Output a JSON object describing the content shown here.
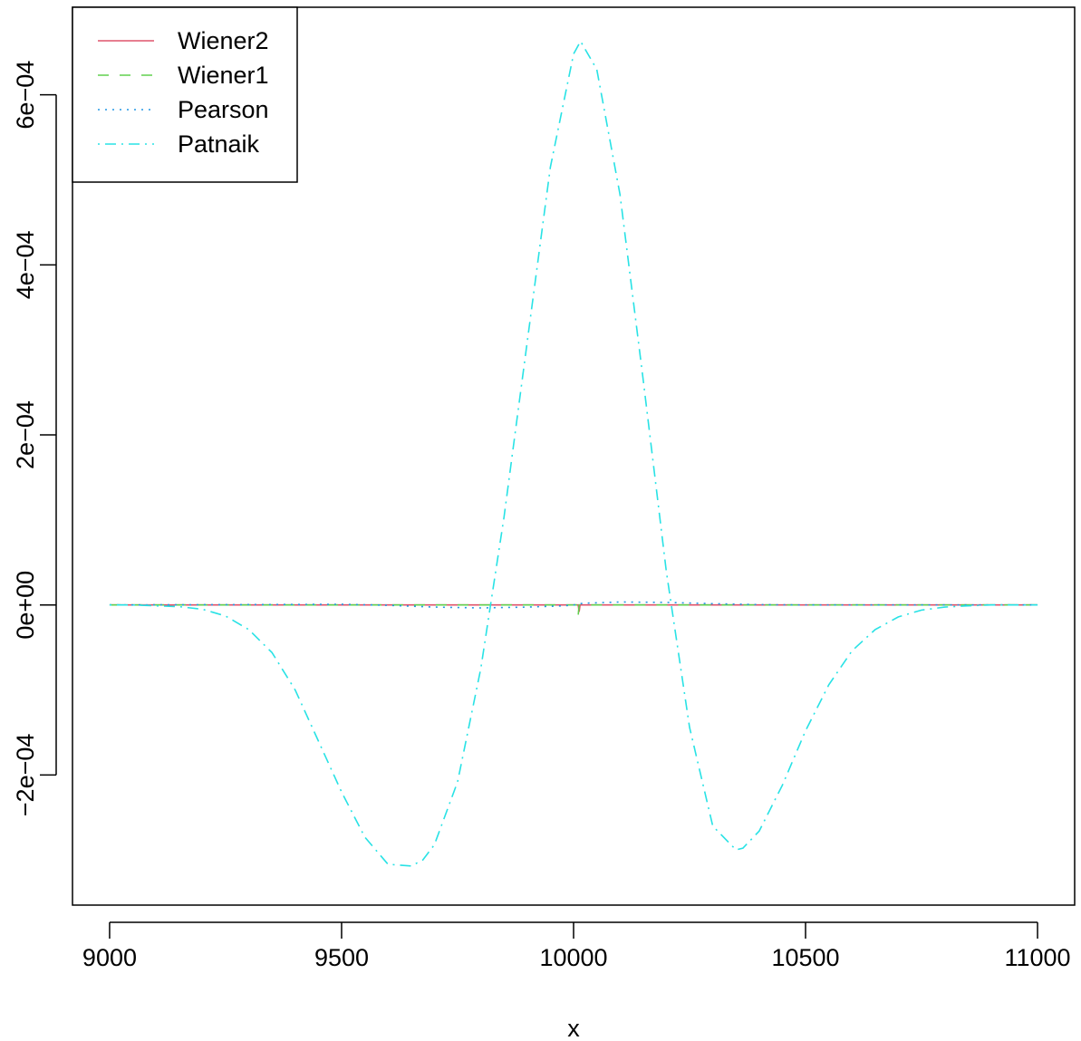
{
  "chart_data": {
    "type": "line",
    "title": "",
    "xlabel": "x",
    "ylabel": "",
    "xlim": [
      8920,
      11080
    ],
    "ylim": [
      -0.000353,
      0.000703
    ],
    "x_ticks": [
      9000,
      9500,
      10000,
      10500,
      11000
    ],
    "x_tick_labels": [
      "9000",
      "9500",
      "10000",
      "10500",
      "11000"
    ],
    "y_ticks": [
      -0.0002,
      0,
      0.0002,
      0.0004,
      0.0006
    ],
    "y_tick_labels": [
      "−2e−04",
      "0e+00",
      "2e−04",
      "4e−04",
      "6e−04"
    ],
    "legend_position": "top-left",
    "grid": false,
    "series": [
      {
        "name": "Wiener2",
        "color": "#DF536B",
        "dash": "solid",
        "x": [
          9000,
          10000,
          10010,
          10012,
          10014,
          11000
        ],
        "y": [
          0,
          0,
          0,
          -8e-06,
          0,
          0
        ]
      },
      {
        "name": "Wiener1",
        "color": "#61D04F",
        "dash": "dashed",
        "x": [
          9000,
          10000,
          10008,
          10010,
          10012,
          11000
        ],
        "y": [
          0,
          0,
          0,
          -1.2e-05,
          0,
          0
        ]
      },
      {
        "name": "Pearson",
        "color": "#2297E6",
        "dash": "dotted",
        "x": [
          9000,
          9300,
          9500,
          9600,
          9700,
          9800,
          9900,
          9980,
          10000,
          10020,
          10100,
          10200,
          10300,
          10400,
          10500,
          10700,
          11000
        ],
        "y": [
          0,
          4e-07,
          8e-07,
          -4e-07,
          -2.5e-06,
          -3.5e-06,
          -2.5e-06,
          -1e-06,
          0,
          2e-06,
          3.5e-06,
          3e-06,
          1.5e-06,
          4e-07,
          0,
          0,
          0
        ]
      },
      {
        "name": "Patnaik",
        "color": "#28E2E5",
        "dash": "dotdash",
        "x": [
          9000,
          9050,
          9100,
          9150,
          9200,
          9250,
          9300,
          9350,
          9400,
          9450,
          9500,
          9550,
          9600,
          9650,
          9675,
          9700,
          9750,
          9800,
          9850,
          9900,
          9950,
          10000,
          10015,
          10050,
          10100,
          10150,
          10200,
          10250,
          10300,
          10350,
          10365,
          10400,
          10450,
          10500,
          10550,
          10600,
          10650,
          10700,
          10750,
          10800,
          10850,
          10900,
          10950,
          11000
        ],
        "y": [
          0,
          0,
          -1e-06,
          -2e-06,
          -5e-06,
          -1.3e-05,
          -2.9e-05,
          -5.6e-05,
          -0.0001,
          -0.00016,
          -0.00022,
          -0.000273,
          -0.000305,
          -0.000307,
          -0.0003,
          -0.000282,
          -0.000208,
          -7.5e-05,
          0.000103,
          0.000309,
          0.000515,
          0.000648,
          0.000663,
          0.00063,
          0.000483,
          0.000265,
          3.9e-05,
          -0.000144,
          -0.00026,
          -0.000288,
          -0.000286,
          -0.000266,
          -0.000212,
          -0.000148,
          -9.4e-05,
          -5.4e-05,
          -2.9e-05,
          -1.4e-05,
          -6e-06,
          -2.5e-06,
          -1e-06,
          0,
          0,
          0
        ]
      }
    ]
  }
}
